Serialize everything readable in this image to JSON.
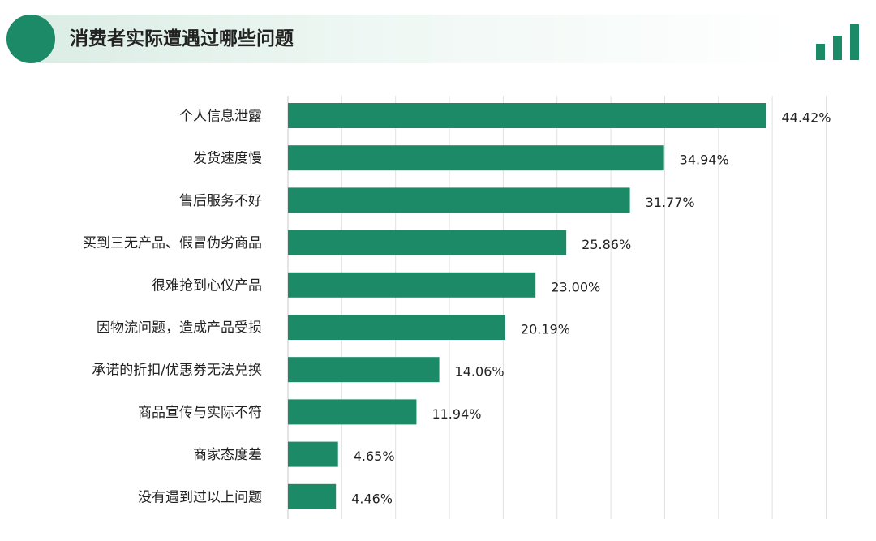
{
  "header": {
    "title": "消费者实际遭遇过哪些问题",
    "accent_color": "#1c8a66",
    "logo_icon": "bar-chart-icon"
  },
  "chart_data": {
    "type": "bar",
    "orientation": "horizontal",
    "title": "消费者实际遭遇过哪些问题",
    "categories": [
      "个人信息泄露",
      "发货速度慢",
      "售后服务不好",
      "买到三无产品、假冒伪劣商品",
      "很难抢到心仪产品",
      "因物流问题，造成产品受损",
      "承诺的折扣/优惠券无法兑换",
      "商品宣传与实际不符",
      "商家态度差",
      "没有遇到过以上问题"
    ],
    "values": [
      44.42,
      34.94,
      31.77,
      25.86,
      23.0,
      20.19,
      14.06,
      11.94,
      4.65,
      4.46
    ],
    "value_labels": [
      "44.42%",
      "34.94%",
      "31.77%",
      "25.86%",
      "23.00%",
      "20.19%",
      "14.06%",
      "11.94%",
      "4.65%",
      "4.46%"
    ],
    "xlim": [
      0,
      50
    ],
    "grid": true,
    "bar_color": "#1c8a66"
  }
}
